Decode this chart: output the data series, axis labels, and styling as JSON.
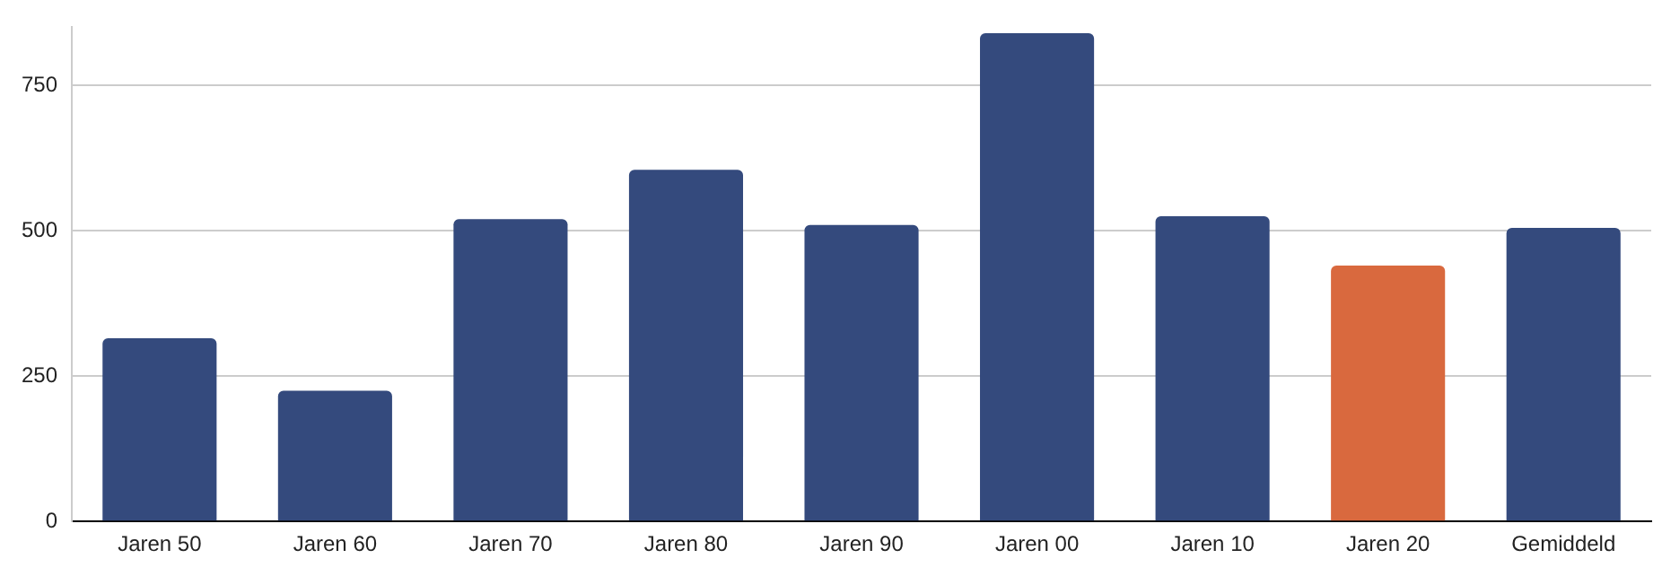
{
  "chart_data": {
    "type": "bar",
    "categories": [
      "Jaren 50",
      "Jaren 60",
      "Jaren 70",
      "Jaren 80",
      "Jaren 90",
      "Jaren 00",
      "Jaren 10",
      "Jaren 20",
      "Gemiddeld"
    ],
    "values": [
      315,
      225,
      520,
      605,
      510,
      840,
      525,
      440,
      505
    ],
    "colors": [
      "#344a7d",
      "#344a7d",
      "#344a7d",
      "#344a7d",
      "#344a7d",
      "#344a7d",
      "#344a7d",
      "#d9693e",
      "#344a7d"
    ],
    "yticks": [
      0,
      250,
      500,
      750
    ],
    "ylim": [
      0,
      850
    ],
    "grid": "y",
    "legend": false
  }
}
